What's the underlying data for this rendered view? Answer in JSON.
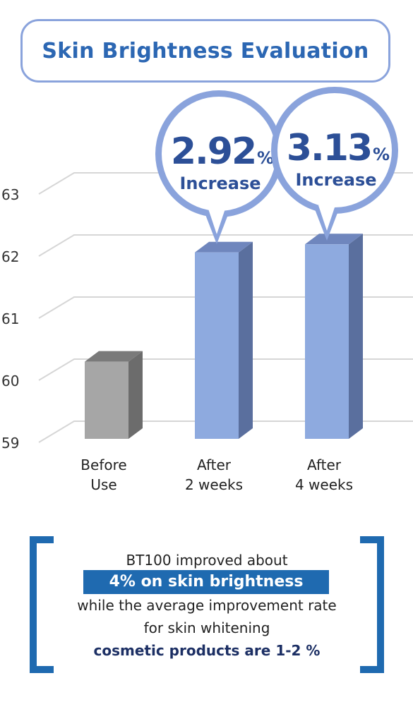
{
  "title": "Skin Brightness Evaluation",
  "chart_data": {
    "type": "bar",
    "categories": [
      [
        "Before",
        "Use"
      ],
      [
        "After",
        "2 weeks"
      ],
      [
        "After",
        "4 weeks"
      ]
    ],
    "values": [
      60.3,
      62.06,
      62.19
    ],
    "bar_colors": [
      "#a6a6a6",
      "#8eaadf",
      "#8eaadf"
    ],
    "ylim": [
      59,
      63
    ],
    "yticks": [
      "59",
      "60",
      "61",
      "62",
      "63"
    ],
    "grid": true,
    "callouts": [
      {
        "bar": 1,
        "value": "2.92",
        "unit": "%",
        "label": "Increase"
      },
      {
        "bar": 2,
        "value": "3.13",
        "unit": "%",
        "label": "Increase"
      }
    ]
  },
  "summary": {
    "line1": "BT100 improved about",
    "highlight": "4% on skin brightness",
    "line3": "while the average improvement rate",
    "line4": "for skin whitening",
    "line5": "cosmetic products are 1-2 %"
  },
  "colors": {
    "accent": "#2c67b3",
    "bracket": "#1f6ab0",
    "callout_text": "#2c4f97",
    "callout_ring": "#8aa3dc"
  }
}
